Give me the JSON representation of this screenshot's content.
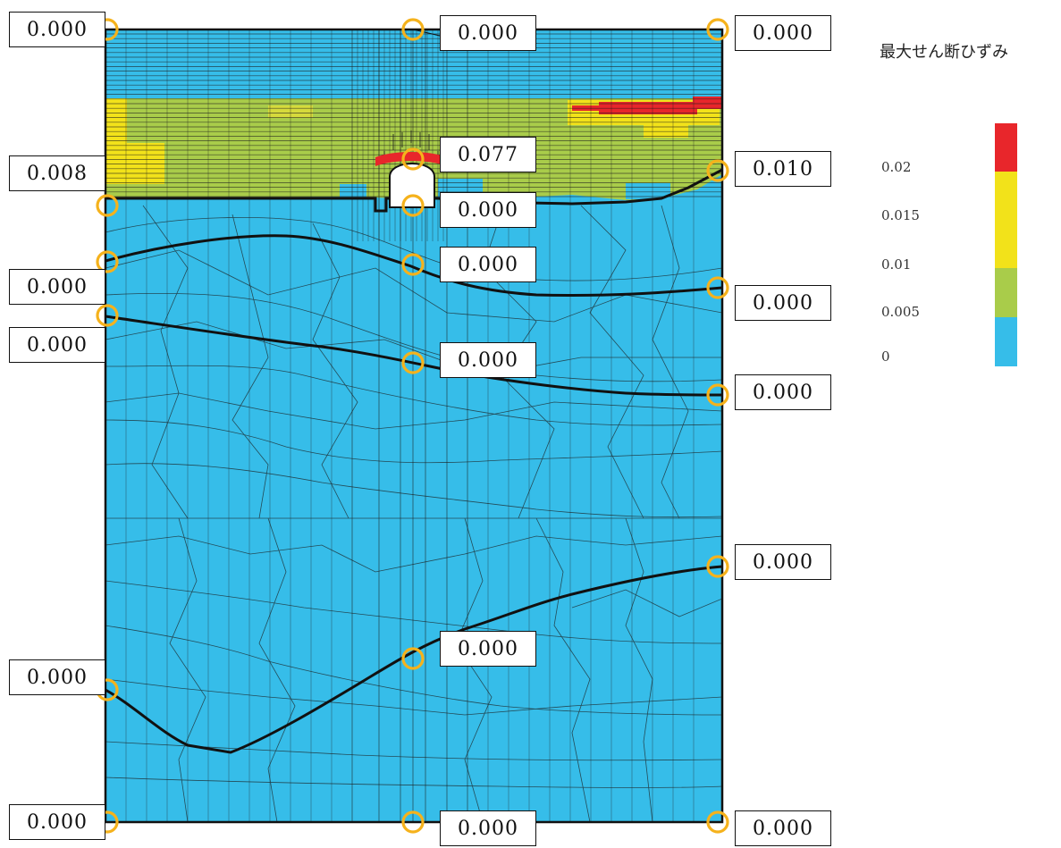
{
  "legend": {
    "title": "最大せん断ひずみ",
    "ticks": [
      "0.02",
      "0.015",
      "0.01",
      "0.005",
      "0"
    ],
    "colors": [
      "#e8262b",
      "#f2e21a",
      "#a9cc4a",
      "#36bde9"
    ]
  },
  "markers": [
    {
      "id": "top-left",
      "value": "0.000"
    },
    {
      "id": "top-center",
      "value": "0.000"
    },
    {
      "id": "top-right",
      "value": "0.000"
    },
    {
      "id": "tunnel-crown",
      "value": "0.077"
    },
    {
      "id": "left-upper",
      "value": "0.008"
    },
    {
      "id": "right-upper",
      "value": "0.010"
    },
    {
      "id": "tunnel-invert",
      "value": "0.000"
    },
    {
      "id": "center-below-tunnel",
      "value": "0.000"
    },
    {
      "id": "left-layer-2",
      "value": "0.000"
    },
    {
      "id": "right-layer-2",
      "value": "0.000"
    },
    {
      "id": "left-layer-3",
      "value": "0.000"
    },
    {
      "id": "center-layer-3",
      "value": "0.000"
    },
    {
      "id": "right-layer-3",
      "value": "0.000"
    },
    {
      "id": "right-layer-4",
      "value": "0.000"
    },
    {
      "id": "center-layer-4",
      "value": "0.000"
    },
    {
      "id": "left-layer-4",
      "value": "0.000"
    },
    {
      "id": "bottom-left",
      "value": "0.000"
    },
    {
      "id": "bottom-center",
      "value": "0.000"
    },
    {
      "id": "bottom-right",
      "value": "0.000"
    }
  ]
}
